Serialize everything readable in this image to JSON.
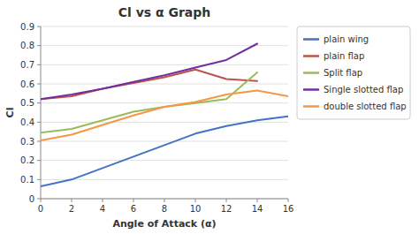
{
  "chart_data": {
    "type": "line",
    "title": "Cl vs α Graph",
    "xlabel": "Angle of Attack (α)",
    "ylabel": "Cl",
    "x": [
      0,
      2,
      4,
      6,
      8,
      10,
      12,
      14,
      16
    ],
    "series": [
      {
        "name": "plain wing",
        "color": "#4472C4",
        "values": [
          0.065,
          0.1,
          0.16,
          0.22,
          0.28,
          0.34,
          0.38,
          0.41,
          0.43
        ]
      },
      {
        "name": "plain flap",
        "color": "#C0504D",
        "values": [
          0.52,
          0.535,
          0.575,
          0.605,
          0.635,
          0.675,
          0.625,
          0.615,
          null
        ]
      },
      {
        "name": "Split flap",
        "color": "#9BBB59",
        "values": [
          0.345,
          0.365,
          0.41,
          0.455,
          0.48,
          0.5,
          0.52,
          0.66,
          null
        ]
      },
      {
        "name": "Single slotted flap",
        "color": "#7030A0",
        "values": [
          0.52,
          0.545,
          0.575,
          0.61,
          0.645,
          0.685,
          0.725,
          0.81,
          null
        ]
      },
      {
        "name": "double slotted flap",
        "color": "#F79646",
        "values": [
          0.305,
          0.335,
          0.385,
          0.435,
          0.48,
          0.505,
          0.545,
          0.565,
          0.535
        ]
      }
    ],
    "xlim": [
      0,
      16
    ],
    "ylim": [
      0,
      0.9
    ],
    "xticks": [
      0,
      2,
      4,
      6,
      8,
      10,
      12,
      14,
      16
    ],
    "yticks": [
      0,
      0.1,
      0.2,
      0.3,
      0.4,
      0.5,
      0.6,
      0.7,
      0.8,
      0.9
    ],
    "grid": true,
    "legend": "right"
  }
}
